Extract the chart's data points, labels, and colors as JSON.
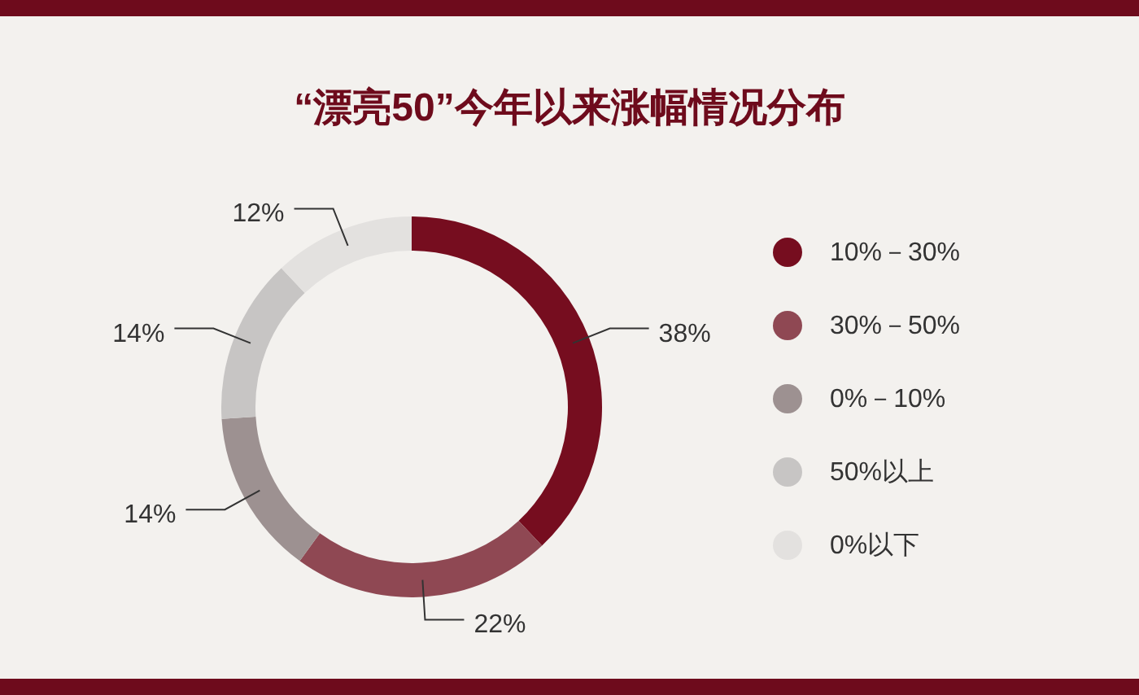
{
  "chart_data": {
    "type": "donut",
    "title": "“漂亮50”今年以来涨幅情况分布",
    "categories": [
      "10%－30%",
      "30%－50%",
      "0%－10%",
      "50%以上",
      "0%以下"
    ],
    "values": [
      38,
      22,
      14,
      14,
      12
    ],
    "value_labels": [
      "38%",
      "22%",
      "14%",
      "14%",
      "12%"
    ],
    "colors": [
      "#760d1f",
      "#8f4853",
      "#9d9191",
      "#c7c5c4",
      "#e3e1df"
    ],
    "legend": "right"
  }
}
